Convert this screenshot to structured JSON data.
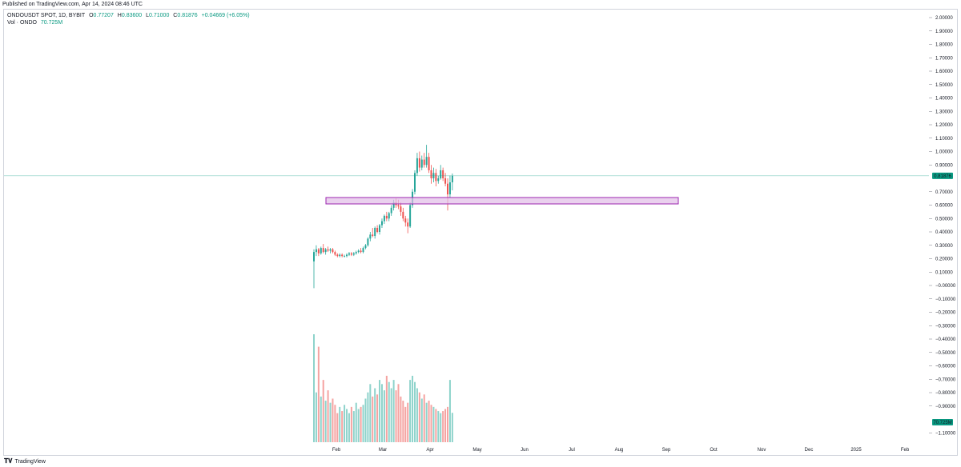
{
  "header": {
    "published": "Published on TradingView.com, Apr 14, 2024 08:46 UTC"
  },
  "legend": {
    "symbol": "ONDOUSDT SPOT, 1D, BYBIT",
    "open_label": "O",
    "open": "0.77207",
    "high_label": "H",
    "high": "0.83600",
    "low_label": "L",
    "low": "0.71000",
    "close_label": "C",
    "close": "0.81876",
    "change": "+0.04669 (+6.05%)",
    "vol_label": "Vol · ONDO",
    "vol_value": "70.725M"
  },
  "price_axis": {
    "ticks": [
      "2.00000",
      "1.90000",
      "1.80000",
      "1.70000",
      "1.60000",
      "1.50000",
      "1.40000",
      "1.30000",
      "1.20000",
      "1.10000",
      "1.00000",
      "0.90000",
      "0.70000",
      "0.60000",
      "0.50000",
      "0.40000",
      "0.30000",
      "0.20000",
      "0.10000",
      "−0.00000",
      "−0.10000",
      "−0.20000",
      "−0.30000",
      "−0.40000",
      "−0.50000",
      "−0.60000",
      "−0.70000",
      "−0.80000",
      "−0.90000",
      "−1.10000"
    ],
    "values": [
      2.0,
      1.9,
      1.8,
      1.7,
      1.6,
      1.5,
      1.4,
      1.3,
      1.2,
      1.1,
      1.0,
      0.9,
      0.7,
      0.6,
      0.5,
      0.4,
      0.3,
      0.2,
      0.1,
      0.0,
      -0.1,
      -0.2,
      -0.3,
      -0.4,
      -0.5,
      -0.6,
      -0.7,
      -0.8,
      -0.9,
      -1.1
    ],
    "last_price_label": "0.81876",
    "volume_label": "70.725M"
  },
  "time_axis": {
    "labels": [
      "Feb",
      "Mar",
      "Apr",
      "May",
      "Jun",
      "Jul",
      "Aug",
      "Sep",
      "Oct",
      "Nov",
      "Dec",
      "2025",
      "Feb"
    ]
  },
  "colors": {
    "up": "#26a69a",
    "down": "#ef5350",
    "vol_up": "#8ed3cb",
    "vol_down": "#f5a3a1",
    "zone_fill": "#e1bee7",
    "zone_stroke": "#9c27b0",
    "last_price": "#089981"
  },
  "chart_data": {
    "type": "candlestick",
    "symbol": "ONDOUSDT SPOT",
    "interval": "1D",
    "exchange": "BYBIT",
    "ylim": [
      -1.1,
      2.0
    ],
    "candles_ohlc": [
      [
        0.18,
        0.27,
        -0.02,
        0.25
      ],
      [
        0.25,
        0.3,
        0.22,
        0.27
      ],
      [
        0.27,
        0.28,
        0.22,
        0.24
      ],
      [
        0.24,
        0.29,
        0.23,
        0.28
      ],
      [
        0.28,
        0.31,
        0.24,
        0.25
      ],
      [
        0.25,
        0.28,
        0.23,
        0.27
      ],
      [
        0.27,
        0.29,
        0.25,
        0.26
      ],
      [
        0.26,
        0.28,
        0.24,
        0.27
      ],
      [
        0.27,
        0.28,
        0.24,
        0.25
      ],
      [
        0.25,
        0.26,
        0.22,
        0.23
      ],
      [
        0.23,
        0.24,
        0.21,
        0.22
      ],
      [
        0.22,
        0.24,
        0.21,
        0.23
      ],
      [
        0.23,
        0.24,
        0.21,
        0.22
      ],
      [
        0.22,
        0.23,
        0.21,
        0.22
      ],
      [
        0.22,
        0.24,
        0.21,
        0.23
      ],
      [
        0.23,
        0.25,
        0.22,
        0.24
      ],
      [
        0.24,
        0.25,
        0.22,
        0.23
      ],
      [
        0.23,
        0.25,
        0.22,
        0.24
      ],
      [
        0.24,
        0.26,
        0.23,
        0.25
      ],
      [
        0.25,
        0.27,
        0.24,
        0.26
      ],
      [
        0.26,
        0.28,
        0.24,
        0.25
      ],
      [
        0.25,
        0.29,
        0.24,
        0.28
      ],
      [
        0.28,
        0.31,
        0.27,
        0.3
      ],
      [
        0.3,
        0.36,
        0.29,
        0.35
      ],
      [
        0.35,
        0.4,
        0.33,
        0.38
      ],
      [
        0.38,
        0.43,
        0.36,
        0.37
      ],
      [
        0.37,
        0.44,
        0.35,
        0.43
      ],
      [
        0.43,
        0.45,
        0.39,
        0.4
      ],
      [
        0.4,
        0.46,
        0.38,
        0.45
      ],
      [
        0.45,
        0.5,
        0.43,
        0.48
      ],
      [
        0.48,
        0.53,
        0.46,
        0.52
      ],
      [
        0.52,
        0.55,
        0.48,
        0.5
      ],
      [
        0.5,
        0.55,
        0.48,
        0.54
      ],
      [
        0.54,
        0.6,
        0.52,
        0.58
      ],
      [
        0.58,
        0.64,
        0.56,
        0.62
      ],
      [
        0.62,
        0.65,
        0.58,
        0.6
      ],
      [
        0.6,
        0.64,
        0.57,
        0.59
      ],
      [
        0.59,
        0.62,
        0.52,
        0.55
      ],
      [
        0.55,
        0.58,
        0.48,
        0.5
      ],
      [
        0.5,
        0.52,
        0.44,
        0.47
      ],
      [
        0.47,
        0.5,
        0.39,
        0.44
      ],
      [
        0.44,
        0.62,
        0.43,
        0.6
      ],
      [
        0.6,
        0.72,
        0.58,
        0.7
      ],
      [
        0.7,
        0.86,
        0.68,
        0.84
      ],
      [
        0.84,
        0.99,
        0.82,
        0.95
      ],
      [
        0.95,
        1.0,
        0.85,
        0.88
      ],
      [
        0.88,
        0.97,
        0.86,
        0.94
      ],
      [
        0.94,
        0.99,
        0.88,
        0.9
      ],
      [
        0.9,
        1.05,
        0.88,
        0.96
      ],
      [
        0.96,
        0.99,
        0.84,
        0.86
      ],
      [
        0.86,
        0.9,
        0.76,
        0.8
      ],
      [
        0.8,
        0.88,
        0.77,
        0.84
      ],
      [
        0.84,
        0.87,
        0.74,
        0.78
      ],
      [
        0.78,
        0.82,
        0.76,
        0.8
      ],
      [
        0.8,
        0.9,
        0.79,
        0.86
      ],
      [
        0.86,
        0.88,
        0.78,
        0.8
      ],
      [
        0.8,
        0.84,
        0.74,
        0.76
      ],
      [
        0.76,
        0.8,
        0.56,
        0.68
      ],
      [
        0.68,
        0.82,
        0.66,
        0.77
      ],
      [
        0.77,
        0.836,
        0.71,
        0.81876
      ]
    ],
    "volume_millions": [
      260,
      120,
      230,
      110,
      150,
      100,
      125,
      95,
      105,
      90,
      70,
      85,
      75,
      90,
      80,
      70,
      85,
      75,
      95,
      80,
      85,
      90,
      105,
      120,
      140,
      110,
      130,
      115,
      150,
      140,
      125,
      160,
      145,
      130,
      150,
      125,
      140,
      110,
      100,
      85,
      95,
      150,
      160,
      145,
      130,
      120,
      105,
      115,
      95,
      100,
      90,
      85,
      80,
      75,
      70,
      75,
      80,
      85,
      150,
      70.725
    ]
  }
}
